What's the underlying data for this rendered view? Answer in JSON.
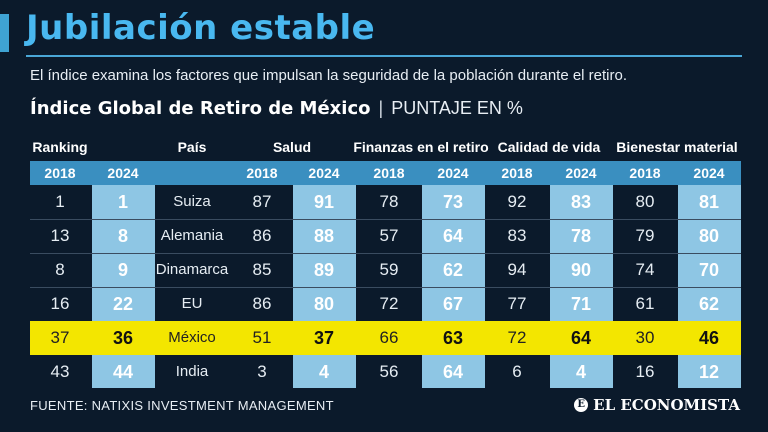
{
  "title": "Jubilación estable",
  "subtitle": "El índice examina los factores que impulsan la seguridad de la población durante el retiro.",
  "table_title": "Índice Global de Retiro de México",
  "table_separator": "|",
  "table_unit": "PUNTAJE EN %",
  "headers": {
    "ranking": "Ranking",
    "pais": "País",
    "salud": "Salud",
    "finanzas": "Finanzas en el retiro",
    "calidad": "Calidad de vida",
    "bienestar": "Bienestar material"
  },
  "years": [
    "2018",
    "2024",
    "2018",
    "2024",
    "2018",
    "2024",
    "2018",
    "2024",
    "2018",
    "2024"
  ],
  "source": "FUENTE: NATIXIS INVESTMENT MANAGEMENT",
  "logo": "EL ECONOMISTA",
  "colors": {
    "title": "#49b8f0",
    "highlight": "#f3e600",
    "col2024": "#8ec6e4",
    "background": "#0b1a2b"
  },
  "chart_data": {
    "type": "table",
    "title": "Índice Global de Retiro de México",
    "unit": "PUNTAJE EN %",
    "columns": [
      "Ranking 2018",
      "Ranking 2024",
      "País",
      "Salud 2018",
      "Salud 2024",
      "Finanzas en el retiro 2018",
      "Finanzas en el retiro 2024",
      "Calidad de vida 2018",
      "Calidad de vida 2024",
      "Bienestar material 2018",
      "Bienestar material 2024"
    ],
    "highlight_row": "México",
    "rows": [
      {
        "rank2018": "1",
        "rank2024": "1",
        "country": "Suiza",
        "salud2018": "87",
        "salud2024": "91",
        "fin2018": "78",
        "fin2024": "73",
        "cal2018": "92",
        "cal2024": "83",
        "bien2018": "80",
        "bien2024": "81"
      },
      {
        "rank2018": "13",
        "rank2024": "8",
        "country": "Alemania",
        "salud2018": "86",
        "salud2024": "88",
        "fin2018": "57",
        "fin2024": "64",
        "cal2018": "83",
        "cal2024": "78",
        "bien2018": "79",
        "bien2024": "80"
      },
      {
        "rank2018": "8",
        "rank2024": "9",
        "country": "Dinamarca",
        "salud2018": "85",
        "salud2024": "89",
        "fin2018": "59",
        "fin2024": "62",
        "cal2018": "94",
        "cal2024": "90",
        "bien2018": "74",
        "bien2024": "70"
      },
      {
        "rank2018": "16",
        "rank2024": "22",
        "country": "EU",
        "salud2018": "86",
        "salud2024": "80",
        "fin2018": "72",
        "fin2024": "67",
        "cal2018": "77",
        "cal2024": "71",
        "bien2018": "61",
        "bien2024": "62"
      },
      {
        "rank2018": "37",
        "rank2024": "36",
        "country": "México",
        "salud2018": "51",
        "salud2024": "37",
        "fin2018": "66",
        "fin2024": "63",
        "cal2018": "72",
        "cal2024": "64",
        "bien2018": "30",
        "bien2024": "46"
      },
      {
        "rank2018": "43",
        "rank2024": "44",
        "country": "India",
        "salud2018": "3",
        "salud2024": "4",
        "fin2018": "56",
        "fin2024": "64",
        "cal2018": "6",
        "cal2024": "4",
        "bien2018": "16",
        "bien2024": "12"
      }
    ]
  }
}
